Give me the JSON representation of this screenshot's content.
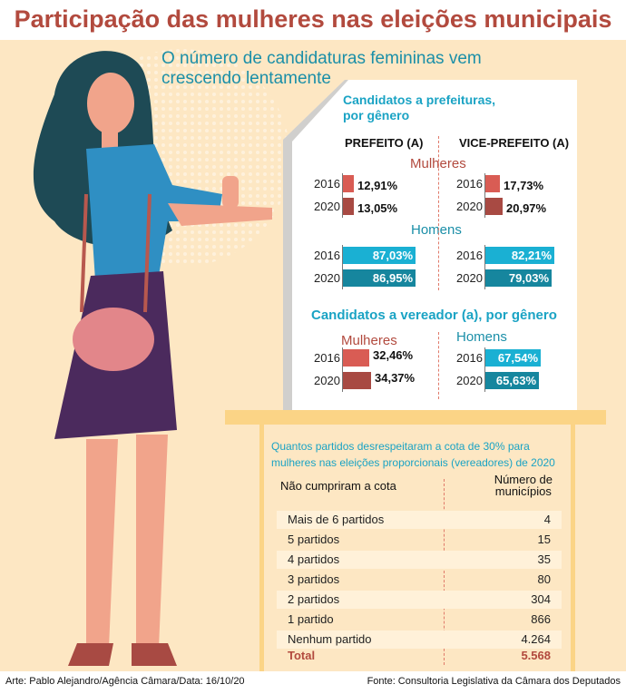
{
  "title": "Participação das mulheres nas eleições municipais",
  "subtitle_1": "O número de candidaturas femininas vem",
  "subtitle_2": "crescendo lentamente",
  "colors": {
    "women_2016": "#d95c54",
    "women_2020": "#a84a43",
    "men_2016": "#1ab0d3",
    "men_2020": "#16869e",
    "title": "#b24a3e",
    "accent": "#1aa3c4"
  },
  "chart_data": [
    {
      "type": "bar",
      "title": "Candidatos a prefeituras, por gênero",
      "subtitle": "PREFEITO (A)",
      "groups": [
        {
          "name": "Mulheres",
          "categories": [
            "2016",
            "2020"
          ],
          "values": [
            12.91,
            13.05
          ],
          "labels": [
            "12,91%",
            "13,05%"
          ]
        },
        {
          "name": "Homens",
          "categories": [
            "2016",
            "2020"
          ],
          "values": [
            87.03,
            86.95
          ],
          "labels": [
            "87,03%",
            "86,95%"
          ]
        }
      ]
    },
    {
      "type": "bar",
      "title": "Candidatos a prefeituras, por gênero",
      "subtitle": "VICE-PREFEITO (A)",
      "groups": [
        {
          "name": "Mulheres",
          "categories": [
            "2016",
            "2020"
          ],
          "values": [
            17.73,
            20.97
          ],
          "labels": [
            "17,73%",
            "20,97%"
          ]
        },
        {
          "name": "Homens",
          "categories": [
            "2016",
            "2020"
          ],
          "values": [
            82.21,
            79.03
          ],
          "labels": [
            "82,21%",
            "79,03%"
          ]
        }
      ]
    },
    {
      "type": "bar",
      "title": "Candidatos a vereador (a), por gênero",
      "groups": [
        {
          "name": "Mulheres",
          "categories": [
            "2016",
            "2020"
          ],
          "values": [
            32.46,
            34.37
          ],
          "labels": [
            "32,46%",
            "34,37%"
          ]
        },
        {
          "name": "Homens",
          "categories": [
            "2016",
            "2020"
          ],
          "values": [
            67.54,
            65.63
          ],
          "labels": [
            "67,54%",
            "65,63%"
          ]
        }
      ]
    },
    {
      "type": "table",
      "title": "Quantos partidos desrespeitaram a cota de 30% para mulheres nas eleições proporcionais (vereadores) de 2020",
      "columns": [
        "Não cumpriram a cota",
        "Número de municípios"
      ],
      "rows": [
        [
          "Mais de 6 partidos",
          "4"
        ],
        [
          "5 partidos",
          "15"
        ],
        [
          "4 partidos",
          "35"
        ],
        [
          "3 partidos",
          "80"
        ],
        [
          "2 partidos",
          "304"
        ],
        [
          "1 partido",
          "866"
        ],
        [
          "Nenhum partido",
          "4.264"
        ]
      ],
      "total": [
        "Total",
        "5.568"
      ]
    }
  ],
  "panel": {
    "title_1": "Candidatos a prefeituras,",
    "title_2": "por gênero",
    "col_a": "PREFEITO (A)",
    "col_b": "VICE-PREFEITO (A)",
    "women": "Mulheres",
    "men": "Homens",
    "ver_title": "Candidatos a vereador (a), por gênero"
  },
  "table": {
    "title_1": "Quantos partidos desrespeitaram a cota de 30% para",
    "title_2": "mulheres nas eleições proporcionais (vereadores) de 2020",
    "col_1": "Não cumpriram a cota",
    "col_2a": "Número de",
    "col_2b": "municípios"
  },
  "footer": {
    "credit": "Arte: Pablo Alejandro/Agência Câmara/Data: 16/10/20",
    "source": "Fonte: Consultoria Legislativa da Câmara dos Deputados"
  }
}
